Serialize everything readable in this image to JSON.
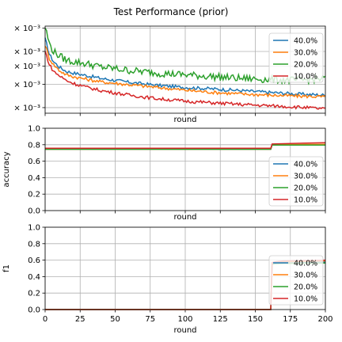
{
  "figure": {
    "title": "Test Performance (prior)"
  },
  "legend_entries": [
    "40.0%",
    "30.0%",
    "20.0%",
    "10.0%"
  ],
  "colors": {
    "40.0%": "#1f77b4",
    "30.0%": "#ff7f0e",
    "20.0%": "#2ca02c",
    "10.0%": "#d62728"
  },
  "chart_data": [
    {
      "type": "line",
      "panel": "loss",
      "xlabel": "round",
      "ylabel": "",
      "xlim": [
        0,
        200
      ],
      "ylim": [
        2.8,
        8.2
      ],
      "yscale": "log",
      "ytick_labels": [
        "× 10⁻³",
        "× 10⁻³",
        "× 10⁻³",
        "× 10⁻³",
        "× 10⁻³"
      ],
      "ytick_values": [
        8,
        6,
        5,
        4,
        3
      ],
      "xtick_labels_visible": false,
      "grid": true,
      "legend_loc": "upper-right",
      "series": [
        {
          "name": "40.0%",
          "x": [
            0,
            3,
            6,
            10,
            15,
            20,
            30,
            40,
            50,
            60,
            80,
            100,
            120,
            140,
            160,
            180,
            200
          ],
          "y": [
            7.0,
            5.8,
            5.3,
            4.95,
            4.7,
            4.6,
            4.45,
            4.3,
            4.2,
            4.1,
            3.95,
            3.85,
            3.78,
            3.7,
            3.62,
            3.55,
            3.5
          ]
        },
        {
          "name": "30.0%",
          "x": [
            0,
            3,
            6,
            10,
            15,
            20,
            30,
            40,
            50,
            60,
            80,
            100,
            120,
            140,
            160,
            180,
            200
          ],
          "y": [
            6.5,
            5.5,
            5.1,
            4.75,
            4.5,
            4.4,
            4.25,
            4.12,
            4.05,
            3.98,
            3.85,
            3.72,
            3.62,
            3.55,
            3.5,
            3.46,
            3.43
          ]
        },
        {
          "name": "20.0%",
          "x": [
            0,
            3,
            6,
            10,
            15,
            20,
            30,
            40,
            50,
            60,
            80,
            100,
            120,
            140,
            160,
            180,
            200
          ],
          "y": [
            8.1,
            6.6,
            6.0,
            5.7,
            5.4,
            5.3,
            5.15,
            4.95,
            4.85,
            4.75,
            4.6,
            4.5,
            4.4,
            4.3,
            4.25,
            4.2,
            4.3
          ]
        },
        {
          "name": "10.0%",
          "x": [
            0,
            3,
            6,
            10,
            15,
            20,
            30,
            40,
            50,
            60,
            80,
            100,
            120,
            140,
            160,
            180,
            200
          ],
          "y": [
            6.0,
            5.1,
            4.7,
            4.45,
            4.2,
            4.05,
            3.85,
            3.7,
            3.6,
            3.5,
            3.35,
            3.25,
            3.18,
            3.12,
            3.07,
            3.02,
            2.95
          ]
        }
      ]
    },
    {
      "type": "line",
      "panel": "accuracy",
      "xlabel": "round",
      "ylabel": "accuracy",
      "xlim": [
        0,
        200
      ],
      "ylim": [
        0.0,
        1.0
      ],
      "yticks": [
        0.0,
        0.2,
        0.4,
        0.6,
        0.8,
        1.0
      ],
      "ytick_labels": [
        "0.0",
        "0.2",
        "0.4",
        "0.6",
        "0.8",
        "1.0"
      ],
      "xtick_labels_visible": false,
      "grid": true,
      "legend_loc": "lower-right",
      "series": [
        {
          "name": "40.0%",
          "x": [
            0,
            161,
            162,
            200
          ],
          "y": [
            0.745,
            0.745,
            0.795,
            0.8
          ]
        },
        {
          "name": "30.0%",
          "x": [
            0,
            161,
            162,
            200
          ],
          "y": [
            0.745,
            0.745,
            0.8,
            0.805
          ]
        },
        {
          "name": "20.0%",
          "x": [
            0,
            161,
            162,
            200
          ],
          "y": [
            0.745,
            0.745,
            0.795,
            0.795
          ]
        },
        {
          "name": "10.0%",
          "x": [
            0,
            161,
            162,
            200
          ],
          "y": [
            0.758,
            0.758,
            0.81,
            0.825
          ]
        }
      ]
    },
    {
      "type": "line",
      "panel": "f1",
      "xlabel": "round",
      "ylabel": "f1",
      "xlim": [
        0,
        200
      ],
      "ylim": [
        0.0,
        1.0
      ],
      "yticks": [
        0.0,
        0.2,
        0.4,
        0.6,
        0.8,
        1.0
      ],
      "ytick_labels": [
        "0.0",
        "0.2",
        "0.4",
        "0.6",
        "0.8",
        "1.0"
      ],
      "xticks": [
        0,
        25,
        50,
        75,
        100,
        125,
        150,
        175,
        200
      ],
      "xtick_labels": [
        "0",
        "25",
        "50",
        "75",
        "100",
        "125",
        "150",
        "175",
        "200"
      ],
      "xtick_labels_visible": true,
      "grid": true,
      "legend_loc": "center-right",
      "series": [
        {
          "name": "40.0%",
          "x": [
            0,
            161,
            162,
            164,
            170,
            200
          ],
          "y": [
            0.0,
            0.0,
            0.55,
            0.56,
            0.57,
            0.58
          ]
        },
        {
          "name": "30.0%",
          "x": [
            0,
            161,
            162,
            164,
            170,
            200
          ],
          "y": [
            0.0,
            0.0,
            0.56,
            0.57,
            0.58,
            0.59
          ]
        },
        {
          "name": "20.0%",
          "x": [
            0,
            161,
            162,
            164,
            170,
            200
          ],
          "y": [
            0.0,
            0.0,
            0.55,
            0.555,
            0.56,
            0.565
          ]
        },
        {
          "name": "10.0%",
          "x": [
            0,
            161,
            162,
            164,
            170,
            200
          ],
          "y": [
            0.0,
            0.0,
            0.57,
            0.58,
            0.59,
            0.6
          ]
        }
      ]
    }
  ]
}
